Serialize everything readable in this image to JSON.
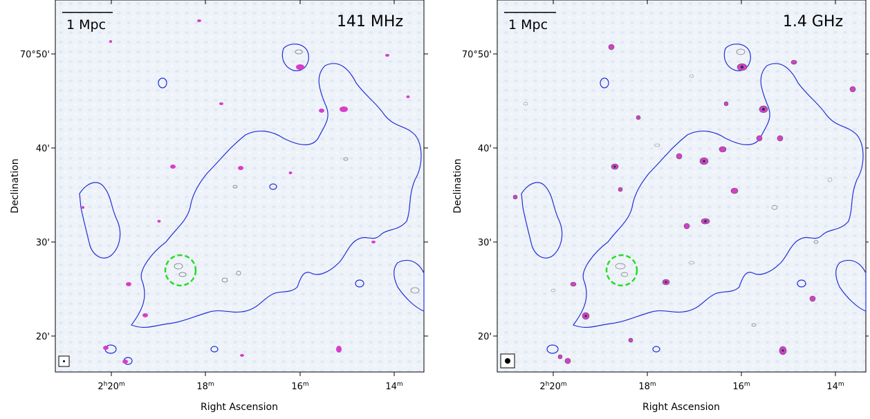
{
  "panels": [
    {
      "id": "left",
      "frequency_label": "141 MHz",
      "scale_label": "1 Mpc",
      "x_axis_label": "Right Ascension",
      "y_axis_label": "Declination",
      "x_ticks": [
        {
          "main": "2",
          "sup1": "h",
          "mid": "20",
          "sup2": "m"
        },
        {
          "main": "18",
          "sup1": "",
          "mid": "",
          "sup2": "m"
        },
        {
          "main": "16",
          "sup1": "",
          "mid": "",
          "sup2": "m"
        },
        {
          "main": "14",
          "sup1": "",
          "mid": "",
          "sup2": "m"
        }
      ],
      "y_ticks": [
        "70°50'",
        "40'",
        "30'",
        "20'"
      ],
      "beam": "small"
    },
    {
      "id": "right",
      "frequency_label": "1.4 GHz",
      "scale_label": "1 Mpc",
      "x_axis_label": "Right Ascension",
      "y_axis_label": "Declination",
      "x_ticks": [
        {
          "main": "2",
          "sup1": "h",
          "mid": "20",
          "sup2": "m"
        },
        {
          "main": "18",
          "sup1": "",
          "mid": "",
          "sup2": "m"
        },
        {
          "main": "16",
          "sup1": "",
          "mid": "",
          "sup2": "m"
        },
        {
          "main": "14",
          "sup1": "",
          "mid": "",
          "sup2": "m"
        }
      ],
      "y_ticks": [
        "70°50'",
        "40'",
        "30'",
        "20'"
      ],
      "beam": "large"
    }
  ],
  "colors": {
    "blue_contour": "#1f2fd6",
    "magenta_source": "#d63ec9",
    "gray_source": "#777777",
    "green_circle": "#22dd22",
    "background": "#eef2f9"
  }
}
